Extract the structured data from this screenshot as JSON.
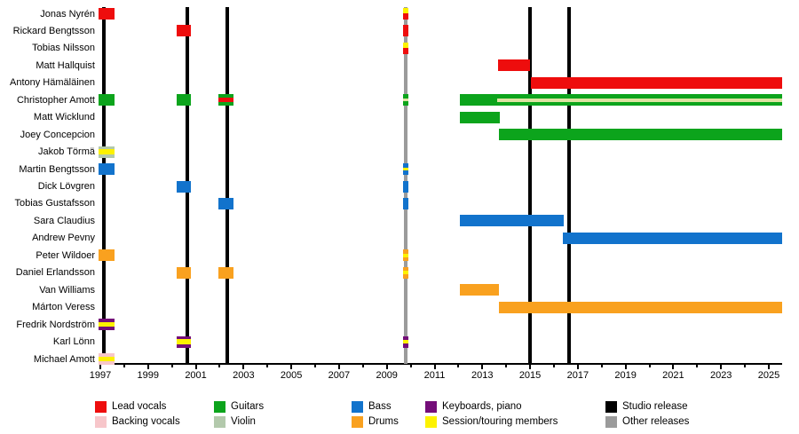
{
  "colors": {
    "lead_vocals": "#ee0d0d",
    "backing_vocals": "#f7c6ca",
    "guitars": "#0ca41c",
    "violin": "#b3c9ac",
    "bass": "#1273cc",
    "drums": "#f9a11f",
    "keyboards": "#740d79",
    "session": "#fdf200",
    "studio": "#000000",
    "other": "#9b9b9b",
    "guitar_stripe": "#dde3a2"
  },
  "chart_data": {
    "type": "timeline",
    "x_axis": {
      "start": 1997,
      "end": 2025,
      "major_ticks": [
        1997,
        1999,
        2001,
        2003,
        2005,
        2007,
        2009,
        2011,
        2013,
        2015,
        2017,
        2019,
        2021,
        2023,
        2025
      ],
      "minor_ticks": [
        1998,
        2000,
        2002,
        2004,
        2006,
        2008,
        2010,
        2012,
        2014,
        2016,
        2018,
        2020,
        2022,
        2024
      ]
    },
    "releases": {
      "studio": [
        1997.15,
        2000.66,
        2002.32,
        2015.0,
        2016.63
      ],
      "other": [
        2009.79
      ]
    },
    "members": [
      {
        "name": "Jonas Nyrén",
        "bars": [
          {
            "s": 1996.93,
            "e": 1997.59,
            "segs": [
              [
                "lead_vocals",
                1
              ]
            ]
          },
          {
            "s": 2009.68,
            "e": 2009.9,
            "segs": [
              [
                "session",
                0.45
              ],
              [
                "lead_vocals",
                0.55
              ]
            ]
          }
        ]
      },
      {
        "name": "Rickard Bengtsson",
        "bars": [
          {
            "s": 2000.2,
            "e": 2000.79,
            "segs": [
              [
                "lead_vocals",
                1
              ]
            ]
          },
          {
            "s": 2009.68,
            "e": 2009.9,
            "segs": [
              [
                "lead_vocals",
                1
              ]
            ]
          }
        ]
      },
      {
        "name": "Tobias Nilsson",
        "bars": [
          {
            "s": 2009.68,
            "e": 2009.9,
            "segs": [
              [
                "session",
                0.5
              ],
              [
                "lead_vocals",
                0.5
              ]
            ]
          }
        ]
      },
      {
        "name": "Matt Hallquist",
        "bars": [
          {
            "s": 2013.66,
            "e": 2015.0,
            "segs": [
              [
                "lead_vocals",
                1
              ]
            ]
          }
        ]
      },
      {
        "name": "Antony Hämäläinen",
        "bars": [
          {
            "s": 2015.03,
            "e": 2025.56,
            "segs": [
              [
                "lead_vocals",
                1
              ]
            ]
          }
        ]
      },
      {
        "name": "Christopher Amott",
        "bars": [
          {
            "s": 1996.93,
            "e": 1997.59,
            "segs": [
              [
                "guitars",
                1
              ]
            ]
          },
          {
            "s": 2000.2,
            "e": 2000.79,
            "segs": [
              [
                "guitars",
                1
              ]
            ]
          },
          {
            "s": 2001.95,
            "e": 2002.58,
            "segs": [
              [
                "guitars",
                0.32
              ],
              [
                "lead_vocals",
                0.36
              ],
              [
                "guitars",
                0.32
              ]
            ]
          },
          {
            "s": 2009.68,
            "e": 2009.9,
            "segs": [
              [
                "guitars",
                0.38
              ],
              [
                "guitar_stripe",
                0.24
              ],
              [
                "guitars",
                0.38
              ]
            ]
          },
          {
            "s": 2012.06,
            "e": 2025.56,
            "segs": [
              [
                "guitars",
                1
              ]
            ],
            "overlay": {
              "s": 2013.62,
              "e": 2025.56,
              "c": "guitar_stripe"
            }
          }
        ]
      },
      {
        "name": "Matt Wicklund",
        "bars": [
          {
            "s": 2012.06,
            "e": 2013.73,
            "segs": [
              [
                "guitars",
                1
              ]
            ]
          }
        ]
      },
      {
        "name": "Joey Concepcion",
        "bars": [
          {
            "s": 2013.7,
            "e": 2025.56,
            "segs": [
              [
                "guitars",
                1
              ]
            ]
          }
        ]
      },
      {
        "name": "Jakob Törmä",
        "bars": [
          {
            "s": 1996.93,
            "e": 1997.59,
            "segs": [
              [
                "violin",
                0.28
              ],
              [
                "session",
                0.44
              ],
              [
                "violin",
                0.28
              ]
            ]
          }
        ]
      },
      {
        "name": "Martin Bengtsson",
        "bars": [
          {
            "s": 1996.93,
            "e": 1997.59,
            "segs": [
              [
                "bass",
                1
              ]
            ]
          },
          {
            "s": 2009.68,
            "e": 2009.9,
            "segs": [
              [
                "bass",
                0.36
              ],
              [
                "session",
                0.28
              ],
              [
                "bass",
                0.36
              ]
            ]
          }
        ]
      },
      {
        "name": "Dick Lövgren",
        "bars": [
          {
            "s": 2000.2,
            "e": 2000.79,
            "segs": [
              [
                "bass",
                1
              ]
            ]
          },
          {
            "s": 2009.68,
            "e": 2009.9,
            "segs": [
              [
                "bass",
                1
              ]
            ]
          }
        ]
      },
      {
        "name": "Tobias Gustafsson",
        "bars": [
          {
            "s": 2001.95,
            "e": 2002.58,
            "segs": [
              [
                "bass",
                1
              ]
            ]
          },
          {
            "s": 2009.68,
            "e": 2009.9,
            "segs": [
              [
                "bass",
                1
              ]
            ]
          }
        ]
      },
      {
        "name": "Sara Claudius",
        "bars": [
          {
            "s": 2012.06,
            "e": 2016.41,
            "segs": [
              [
                "bass",
                1
              ]
            ]
          }
        ]
      },
      {
        "name": "Andrew Pevny",
        "bars": [
          {
            "s": 2016.37,
            "e": 2025.56,
            "segs": [
              [
                "bass",
                1
              ]
            ]
          }
        ]
      },
      {
        "name": "Peter Wildoer",
        "bars": [
          {
            "s": 1996.93,
            "e": 1997.59,
            "segs": [
              [
                "drums",
                1
              ]
            ]
          },
          {
            "s": 2009.68,
            "e": 2009.9,
            "segs": [
              [
                "drums",
                0.33
              ],
              [
                "session",
                0.34
              ],
              [
                "drums",
                0.33
              ]
            ]
          }
        ]
      },
      {
        "name": "Daniel Erlandsson",
        "bars": [
          {
            "s": 2000.2,
            "e": 2000.79,
            "segs": [
              [
                "drums",
                1
              ]
            ]
          },
          {
            "s": 2001.95,
            "e": 2002.58,
            "segs": [
              [
                "drums",
                1
              ]
            ]
          },
          {
            "s": 2009.68,
            "e": 2009.9,
            "segs": [
              [
                "drums",
                0.33
              ],
              [
                "session",
                0.34
              ],
              [
                "drums",
                0.33
              ]
            ]
          }
        ]
      },
      {
        "name": "Van Williams",
        "bars": [
          {
            "s": 2012.06,
            "e": 2013.7,
            "segs": [
              [
                "drums",
                1
              ]
            ]
          }
        ]
      },
      {
        "name": "Márton Veress",
        "bars": [
          {
            "s": 2013.7,
            "e": 2025.56,
            "segs": [
              [
                "drums",
                1
              ]
            ]
          }
        ]
      },
      {
        "name": "Fredrik Nordström",
        "bars": [
          {
            "s": 1996.93,
            "e": 1997.59,
            "segs": [
              [
                "keyboards",
                0.3
              ],
              [
                "session",
                0.4
              ],
              [
                "keyboards",
                0.3
              ]
            ]
          }
        ]
      },
      {
        "name": "Karl Lönn",
        "bars": [
          {
            "s": 2000.2,
            "e": 2000.79,
            "segs": [
              [
                "keyboards",
                0.3
              ],
              [
                "session",
                0.4
              ],
              [
                "keyboards",
                0.3
              ]
            ]
          },
          {
            "s": 2009.68,
            "e": 2009.9,
            "segs": [
              [
                "keyboards",
                0.33
              ],
              [
                "session",
                0.34
              ],
              [
                "keyboards",
                0.33
              ]
            ]
          }
        ]
      },
      {
        "name": "Michael Amott",
        "bars": [
          {
            "s": 1996.93,
            "e": 1997.59,
            "segs": [
              [
                "backing_vocals",
                0.32
              ],
              [
                "session",
                0.36
              ],
              [
                "backing_vocals",
                0.32
              ]
            ]
          }
        ]
      }
    ],
    "legend": [
      {
        "label": "Lead vocals",
        "key": "lead_vocals",
        "col": 0,
        "row": 0
      },
      {
        "label": "Backing vocals",
        "key": "backing_vocals",
        "col": 0,
        "row": 1
      },
      {
        "label": "Guitars",
        "key": "guitars",
        "col": 1,
        "row": 0
      },
      {
        "label": "Violin",
        "key": "violin",
        "col": 1,
        "row": 1
      },
      {
        "label": "Bass",
        "key": "bass",
        "col": 2,
        "row": 0
      },
      {
        "label": "Drums",
        "key": "drums",
        "col": 2,
        "row": 1
      },
      {
        "label": "Keyboards, piano",
        "key": "keyboards",
        "col": 3,
        "row": 0
      },
      {
        "label": "Session/touring members",
        "key": "session",
        "col": 3,
        "row": 1
      },
      {
        "label": "Studio release",
        "key": "studio",
        "col": 4,
        "row": 0
      },
      {
        "label": "Other releases",
        "key": "other",
        "col": 4,
        "row": 1
      }
    ]
  }
}
